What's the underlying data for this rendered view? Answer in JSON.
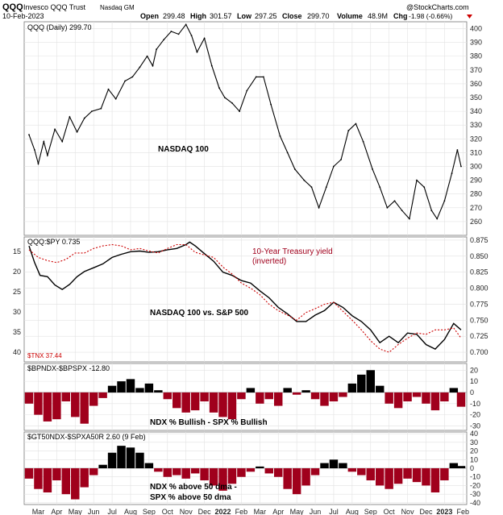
{
  "header": {
    "ticker": "QQQ",
    "name": "Invesco QQQ Trust",
    "exchange": "Nasdaq GM",
    "date": "10-Feb-2023",
    "open_label": "Open",
    "open": "299.48",
    "high_label": "High",
    "high": "301.57",
    "low_label": "Low",
    "low": "297.25",
    "close_label": "Close",
    "close": "299.70",
    "volume_label": "Volume",
    "volume": "48.9M",
    "chg_label": "Chg",
    "chg": "-1.98 (-0.66%)",
    "brand": "@StockCharts.com"
  },
  "colors": {
    "price": "#000000",
    "tnx": "#cc0000",
    "pos_bar": "#000000",
    "neg_bar": "#a0001c",
    "grid": "#e2e2e2"
  },
  "chart_data": [
    {
      "type": "line",
      "panel": "price",
      "legend": "QQQ (Daily) 299.70",
      "annotation": "NASDAQ 100",
      "ylim": [
        250,
        405
      ],
      "y_ticks": [
        260,
        270,
        280,
        290,
        300,
        310,
        320,
        330,
        340,
        350,
        360,
        370,
        380,
        390,
        400
      ],
      "x_tick_labels": [
        "Mar",
        "Apr",
        "May",
        "Jun",
        "Jul",
        "Aug",
        "Sep",
        "Oct",
        "Nov",
        "Dec",
        "2022",
        "Feb",
        "Mar",
        "Apr",
        "May",
        "Jun",
        "Jul",
        "Aug",
        "Sep",
        "Oct",
        "Nov",
        "Dec",
        "2023",
        "Feb"
      ],
      "x": [
        0,
        0.3,
        0.5,
        0.8,
        1.0,
        1.4,
        1.8,
        2.2,
        2.6,
        3.0,
        3.4,
        3.9,
        4.3,
        4.7,
        5.2,
        5.6,
        6.0,
        6.4,
        6.7,
        6.9,
        7.3,
        7.7,
        8.1,
        8.5,
        8.8,
        9.1,
        9.5,
        9.9,
        10.3,
        10.6,
        11.0,
        11.4,
        11.8,
        12.3,
        12.7,
        13.1,
        13.6,
        14.0,
        14.4,
        14.9,
        15.3,
        15.7,
        16.1,
        16.5,
        16.9,
        17.3,
        17.7,
        18.1,
        18.6,
        19.0,
        19.4,
        19.8,
        20.2,
        20.6,
        21.0,
        21.4,
        21.8,
        22.1,
        22.5,
        22.9,
        23.2,
        23.4
      ],
      "values": [
        323,
        312,
        302,
        318,
        308,
        327,
        318,
        336,
        325,
        335,
        340,
        342,
        356,
        349,
        362,
        365,
        372,
        380,
        373,
        385,
        392,
        398,
        396,
        403,
        395,
        383,
        393,
        373,
        357,
        350,
        346,
        340,
        355,
        365,
        365,
        345,
        322,
        310,
        298,
        290,
        285,
        270,
        285,
        300,
        305,
        326,
        331,
        318,
        298,
        285,
        270,
        275,
        268,
        262,
        290,
        285,
        268,
        262,
        275,
        295,
        312,
        300
      ]
    },
    {
      "type": "line",
      "panel": "ratio",
      "legend": "QQQ:$PY 0.735",
      "legend2": "$TNX 37.44",
      "annotation1": "10-Year Treasury yield",
      "annotation2": "(inverted)",
      "annotation3": "NASDAQ 100 vs. S&P 500",
      "ylim": [
        0.685,
        0.88
      ],
      "y_ticks": [
        0.7,
        0.725,
        0.75,
        0.775,
        0.8,
        0.825,
        0.85,
        0.875
      ],
      "y_ticks_left": [
        15,
        20,
        25,
        30,
        35,
        40
      ],
      "series": [
        {
          "name": "QQQ:$PY",
          "x": [
            0,
            0.3,
            0.6,
            1.0,
            1.4,
            1.8,
            2.2,
            2.6,
            3.0,
            3.5,
            4.0,
            4.5,
            5.0,
            5.5,
            6.0,
            6.5,
            7.0,
            7.5,
            8.0,
            8.5,
            8.7,
            9.0,
            9.5,
            10.0,
            10.5,
            11.0,
            11.5,
            12.0,
            12.5,
            13.0,
            13.5,
            14.0,
            14.5,
            15.0,
            15.5,
            16.0,
            16.5,
            17.0,
            17.5,
            18.0,
            18.5,
            19.0,
            19.5,
            20.0,
            20.5,
            21.0,
            21.5,
            22.0,
            22.5,
            23.0,
            23.4
          ],
          "values": [
            0.866,
            0.84,
            0.82,
            0.818,
            0.805,
            0.798,
            0.806,
            0.818,
            0.826,
            0.832,
            0.838,
            0.848,
            0.853,
            0.857,
            0.858,
            0.856,
            0.857,
            0.86,
            0.862,
            0.868,
            0.872,
            0.866,
            0.854,
            0.842,
            0.825,
            0.82,
            0.812,
            0.808,
            0.796,
            0.785,
            0.77,
            0.76,
            0.748,
            0.748,
            0.758,
            0.765,
            0.778,
            0.77,
            0.757,
            0.748,
            0.735,
            0.715,
            0.725,
            0.715,
            0.73,
            0.728,
            0.712,
            0.705,
            0.72,
            0.745,
            0.735
          ]
        },
        {
          "name": "$TNX 37.44",
          "x": [
            0,
            0.5,
            1.0,
            1.5,
            2.0,
            2.5,
            3.0,
            3.5,
            4.0,
            4.5,
            5.0,
            5.5,
            6.0,
            6.5,
            7.0,
            7.5,
            8.0,
            8.5,
            9.0,
            9.5,
            10.0,
            10.5,
            11.0,
            11.5,
            12.0,
            12.5,
            13.0,
            13.5,
            14.0,
            14.5,
            15.0,
            15.5,
            16.0,
            16.5,
            17.0,
            17.5,
            18.0,
            18.5,
            19.0,
            19.5,
            20.0,
            20.5,
            21.0,
            21.5,
            22.0,
            22.5,
            23.0,
            23.4
          ],
          "values": [
            0.86,
            0.848,
            0.843,
            0.84,
            0.845,
            0.855,
            0.855,
            0.862,
            0.866,
            0.868,
            0.866,
            0.86,
            0.862,
            0.858,
            0.855,
            0.862,
            0.868,
            0.868,
            0.856,
            0.852,
            0.848,
            0.833,
            0.822,
            0.808,
            0.8,
            0.79,
            0.775,
            0.765,
            0.758,
            0.75,
            0.762,
            0.768,
            0.775,
            0.778,
            0.764,
            0.75,
            0.735,
            0.718,
            0.705,
            0.7,
            0.712,
            0.722,
            0.73,
            0.728,
            0.735,
            0.735,
            0.738,
            0.722
          ]
        }
      ]
    },
    {
      "type": "bar",
      "panel": "bullish-spread",
      "legend": "$BPNDX-$BPSPX -12.80",
      "annotation": "NDX % Bullish - SPX % Bullish",
      "ylim": [
        -34,
        26
      ],
      "y_ticks": [
        -30,
        -20,
        -10,
        0,
        10,
        20
      ],
      "x": [
        0,
        0.5,
        1.0,
        1.5,
        2.0,
        2.5,
        3.0,
        3.5,
        4.0,
        4.5,
        5.0,
        5.5,
        6.0,
        6.5,
        7.0,
        7.5,
        8.0,
        8.5,
        9.0,
        9.5,
        10.0,
        10.5,
        11.0,
        11.5,
        12.0,
        12.5,
        13.0,
        13.5,
        14.0,
        14.5,
        15.0,
        15.5,
        16.0,
        16.5,
        17.0,
        17.5,
        18.0,
        18.5,
        19.0,
        19.5,
        20.0,
        20.5,
        21.0,
        21.5,
        22.0,
        22.5,
        23.0,
        23.4
      ],
      "values": [
        -10,
        -20,
        -26,
        -24,
        -8,
        -22,
        -28,
        -12,
        -5,
        6,
        10,
        12,
        4,
        8,
        2,
        -6,
        -14,
        -18,
        -16,
        -8,
        -18,
        -22,
        -24,
        -6,
        4,
        -10,
        -6,
        -12,
        4,
        -2,
        2,
        -6,
        -12,
        -8,
        -4,
        8,
        16,
        20,
        6,
        -10,
        -14,
        -8,
        -4,
        -10,
        -16,
        -8,
        4,
        -12.8
      ]
    },
    {
      "type": "bar",
      "panel": "breadth-spread",
      "legend": "$GT50NDX-$SPXA50R 2.60 (9 Feb)",
      "annotation1": "NDX % above 50 dma -",
      "annotation2": "SPX % above 50 dma",
      "ylim": [
        -42,
        42
      ],
      "y_ticks": [
        -40,
        -30,
        -20,
        -10,
        0,
        10,
        20,
        30,
        40
      ],
      "x": [
        0,
        0.5,
        1.0,
        1.5,
        2.0,
        2.5,
        3.0,
        3.5,
        4.0,
        4.5,
        5.0,
        5.5,
        6.0,
        6.5,
        7.0,
        7.5,
        8.0,
        8.5,
        9.0,
        9.5,
        10.0,
        10.5,
        11.0,
        11.5,
        12.0,
        12.5,
        13.0,
        13.5,
        14.0,
        14.5,
        15.0,
        15.5,
        16.0,
        16.5,
        17.0,
        17.5,
        18.0,
        18.5,
        19.0,
        19.5,
        20.0,
        20.5,
        21.0,
        21.5,
        22.0,
        22.5,
        23.0,
        23.4
      ],
      "values": [
        -12,
        -24,
        -28,
        -14,
        -30,
        -36,
        -22,
        -8,
        4,
        18,
        26,
        24,
        18,
        6,
        -4,
        -10,
        -8,
        -12,
        -6,
        -14,
        -20,
        -26,
        -18,
        -10,
        -4,
        2,
        -6,
        -10,
        -24,
        -30,
        -20,
        -8,
        6,
        10,
        6,
        -4,
        -8,
        -14,
        -20,
        -24,
        -18,
        -12,
        -16,
        -20,
        -28,
        -14,
        6,
        2.6
      ]
    }
  ]
}
